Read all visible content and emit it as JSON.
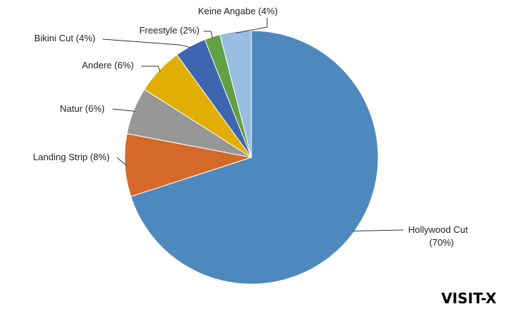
{
  "chart_data": {
    "type": "pie",
    "slices": [
      {
        "label": "Hollywood Cut",
        "label_line2": "(70%)",
        "value": 70,
        "color": "#4e89bd"
      },
      {
        "label": "Landing Strip (8%)",
        "value": 8,
        "color": "#d5692a"
      },
      {
        "label": "Natur (6%)",
        "value": 6,
        "color": "#979797"
      },
      {
        "label": "Andere (6%)",
        "value": 6,
        "color": "#e2ae04"
      },
      {
        "label": "Bikini Cut (4%)",
        "value": 4,
        "color": "#3e65b0"
      },
      {
        "label": "Freestyle (2%)",
        "value": 2,
        "color": "#62a043"
      },
      {
        "label": "Keine Angabe (4%)",
        "value": 4,
        "color": "#99bde0"
      }
    ],
    "start": "12 o'clock",
    "direction": "clockwise"
  },
  "watermark": "VISIT-X"
}
